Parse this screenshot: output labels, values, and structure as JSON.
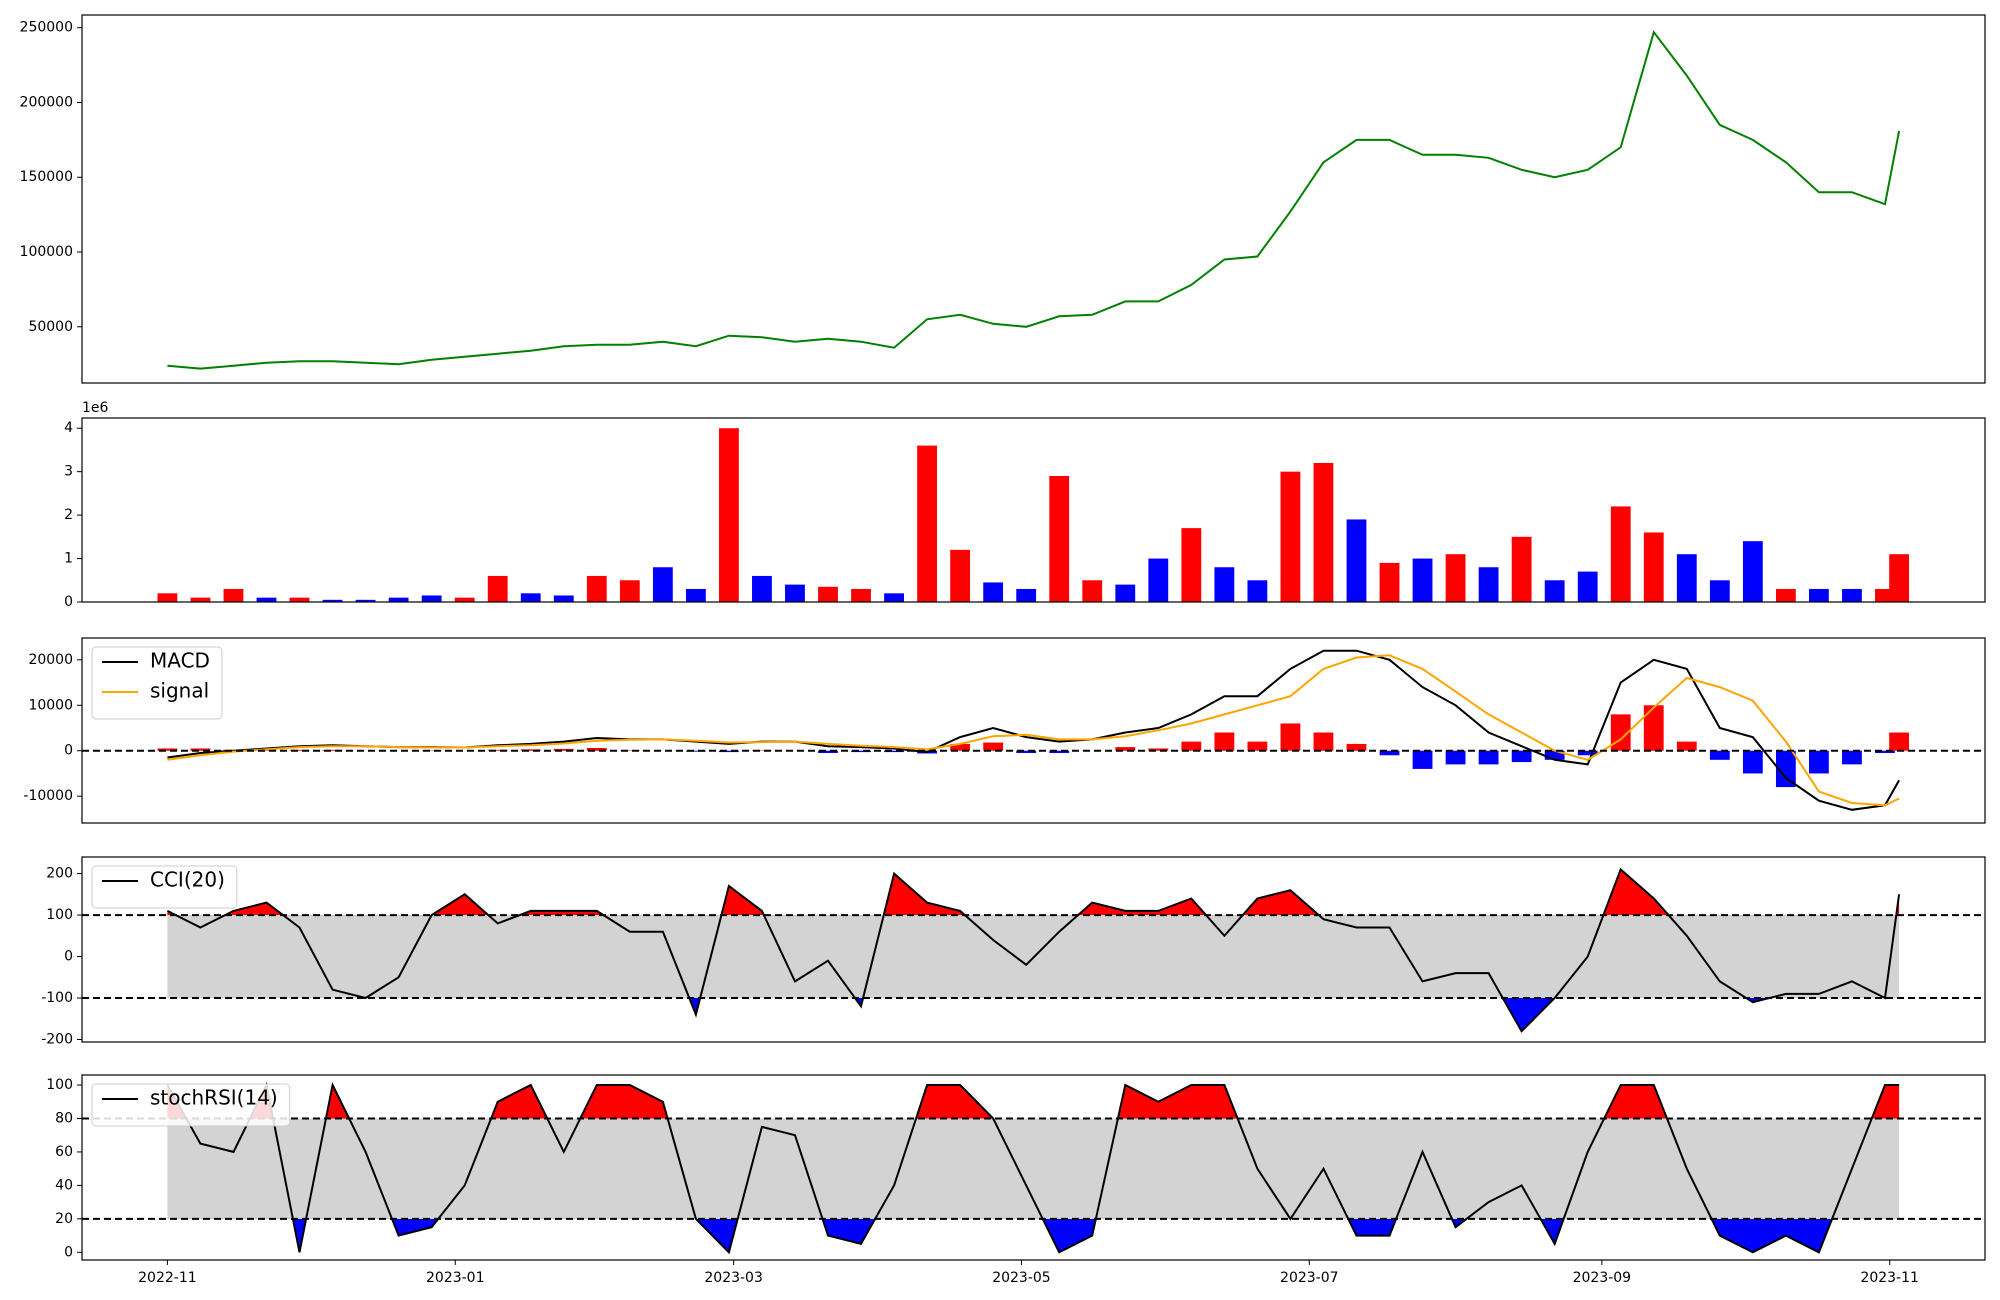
{
  "chart_data": [
    {
      "type": "line",
      "xlim": [
        -18.1,
        385.2
      ],
      "ylim": [
        12400,
        258500
      ],
      "yticks": [
        50000,
        100000,
        150000,
        200000,
        250000
      ],
      "x": [
        0,
        7,
        14,
        21,
        28,
        35,
        42,
        49,
        56,
        63,
        70,
        77,
        84,
        91,
        98,
        105,
        112,
        119,
        126,
        133,
        140,
        147,
        154,
        161,
        168,
        175,
        182,
        189,
        196,
        203,
        210,
        217,
        224,
        231,
        238,
        245,
        252,
        259,
        266,
        273,
        280,
        287,
        294,
        301,
        308,
        315,
        322,
        329,
        336,
        343,
        350,
        357,
        364,
        367
      ],
      "series": [
        {
          "color": "#008000",
          "values": [
            24000,
            22000,
            24000,
            26000,
            27000,
            27000,
            26000,
            25000,
            28000,
            30000,
            32000,
            34000,
            37000,
            38000,
            38000,
            40000,
            37000,
            44000,
            43000,
            40000,
            42000,
            40000,
            36000,
            55000,
            58000,
            52000,
            50000,
            57000,
            58000,
            67000,
            67000,
            78000,
            95000,
            97000,
            127000,
            160000,
            175000,
            175000,
            165000,
            165000,
            163000,
            155000,
            150000,
            155000,
            170000,
            247000,
            218000,
            185000,
            175000,
            160000,
            140000,
            140000,
            132000,
            181000
          ]
        }
      ]
    },
    {
      "type": "bar",
      "xlim": [
        -18.1,
        385.2
      ],
      "ylim": [
        0,
        4.235
      ],
      "yticks": [
        0,
        1,
        2,
        3,
        4
      ],
      "offset_label": "1e6",
      "x": [
        0,
        7,
        14,
        21,
        28,
        35,
        42,
        49,
        56,
        63,
        70,
        77,
        84,
        91,
        98,
        105,
        112,
        119,
        126,
        133,
        140,
        147,
        154,
        161,
        168,
        175,
        182,
        189,
        196,
        203,
        210,
        217,
        224,
        231,
        238,
        245,
        252,
        259,
        266,
        273,
        280,
        287,
        294,
        301,
        308,
        315,
        322,
        329,
        336,
        343,
        350,
        357,
        364,
        367
      ],
      "values": [
        0.2,
        0.1,
        0.3,
        0.1,
        0.1,
        0.05,
        0.05,
        0.1,
        0.15,
        0.1,
        0.6,
        0.2,
        0.15,
        0.6,
        0.5,
        0.8,
        0.3,
        4.0,
        0.6,
        0.4,
        0.35,
        0.3,
        0.2,
        3.6,
        1.2,
        0.45,
        0.3,
        2.9,
        0.5,
        0.4,
        1.0,
        1.7,
        0.8,
        0.5,
        3.0,
        3.2,
        1.9,
        0.9,
        1.0,
        1.1,
        0.8,
        1.5,
        0.5,
        0.7,
        2.2,
        1.6,
        1.1,
        0.5,
        1.4,
        0.3,
        0.3,
        0.3,
        0.3,
        1.1
      ],
      "colors": [
        "red",
        "red",
        "red",
        "blue",
        "red",
        "blue",
        "blue",
        "blue",
        "blue",
        "red",
        "red",
        "blue",
        "blue",
        "red",
        "red",
        "blue",
        "blue",
        "red",
        "blue",
        "blue",
        "red",
        "red",
        "blue",
        "red",
        "red",
        "blue",
        "blue",
        "red",
        "red",
        "blue",
        "blue",
        "red",
        "blue",
        "blue",
        "red",
        "red",
        "blue",
        "red",
        "blue",
        "red",
        "blue",
        "red",
        "blue",
        "blue",
        "red",
        "red",
        "blue",
        "blue",
        "blue",
        "red",
        "blue",
        "blue",
        "red",
        "red"
      ]
    },
    {
      "type": "line",
      "xlim": [
        -18.1,
        385.2
      ],
      "ylim": [
        -15900,
        24800
      ],
      "yticks": [
        -10000,
        0,
        10000,
        20000
      ],
      "hlines": [
        0
      ],
      "legend": "upper left",
      "x": [
        0,
        7,
        14,
        21,
        28,
        35,
        42,
        49,
        56,
        63,
        70,
        77,
        84,
        91,
        98,
        105,
        112,
        119,
        126,
        133,
        140,
        147,
        154,
        161,
        168,
        175,
        182,
        189,
        196,
        203,
        210,
        217,
        224,
        231,
        238,
        245,
        252,
        259,
        266,
        273,
        280,
        287,
        294,
        301,
        308,
        315,
        322,
        329,
        336,
        343,
        350,
        357,
        364,
        367
      ],
      "series": [
        {
          "name": "MACD",
          "color": "black",
          "values": [
            -1500,
            -500,
            0,
            500,
            1000,
            1200,
            1000,
            800,
            800,
            700,
            1200,
            1500,
            2000,
            2800,
            2500,
            2500,
            2000,
            1500,
            2000,
            2000,
            1000,
            800,
            500,
            -300,
            3000,
            5000,
            3000,
            2000,
            2500,
            4000,
            5000,
            8000,
            12000,
            12000,
            18000,
            22000,
            22000,
            20000,
            14000,
            10000,
            4000,
            1000,
            -2000,
            -3000,
            15000,
            20000,
            18000,
            5000,
            3000,
            -6000,
            -11000,
            -13000,
            -12000,
            -6500
          ]
        },
        {
          "name": "signal",
          "color": "orange",
          "values": [
            -2000,
            -1000,
            -200,
            300,
            800,
            1000,
            1000,
            800,
            700,
            700,
            1000,
            1200,
            1600,
            2200,
            2400,
            2500,
            2200,
            1800,
            1900,
            2000,
            1500,
            1100,
            800,
            300,
            1500,
            3200,
            3500,
            2500,
            2500,
            3200,
            4500,
            6000,
            8000,
            10000,
            12000,
            18000,
            20500,
            21000,
            18000,
            13000,
            8000,
            4000,
            0,
            -2000,
            2500,
            9500,
            16000,
            14000,
            11000,
            2000,
            -9000,
            -11500,
            -12000,
            -10500
          ]
        }
      ],
      "histogram": {
        "pos_color": "red",
        "neg_color": "blue",
        "values": [
          500,
          500,
          200,
          200,
          200,
          200,
          0,
          0,
          100,
          0,
          200,
          300,
          400,
          600,
          100,
          0,
          -200,
          -300,
          100,
          0,
          -500,
          -300,
          -300,
          -600,
          1500,
          1800,
          -500,
          -500,
          0,
          800,
          500,
          2000,
          4000,
          2000,
          6000,
          4000,
          1500,
          -1000,
          -4000,
          -3000,
          -3000,
          -2500,
          -2000,
          -1000,
          8000,
          10000,
          2000,
          -2000,
          -5000,
          -8000,
          -5000,
          -3000,
          -500,
          4000
        ]
      }
    },
    {
      "type": "band",
      "xlim": [
        -18.1,
        385.2
      ],
      "ylim": [
        -206,
        240
      ],
      "yticks": [
        -200,
        -100,
        0,
        100,
        200
      ],
      "hlines": [
        -100,
        100
      ],
      "legend": "upper left",
      "band_color": "lightgray",
      "upper_color": "red",
      "lower_color": "blue",
      "x": [
        0,
        7,
        14,
        21,
        28,
        35,
        42,
        49,
        56,
        63,
        70,
        77,
        84,
        91,
        98,
        105,
        112,
        119,
        126,
        133,
        140,
        147,
        154,
        161,
        168,
        175,
        182,
        189,
        196,
        203,
        210,
        217,
        224,
        231,
        238,
        245,
        252,
        259,
        266,
        273,
        280,
        287,
        294,
        301,
        308,
        315,
        322,
        329,
        336,
        343,
        350,
        357,
        364,
        367
      ],
      "series": [
        {
          "name": "CCI(20)",
          "color": "black",
          "values": [
            110,
            70,
            110,
            130,
            70,
            -80,
            -100,
            -50,
            100,
            150,
            80,
            110,
            110,
            110,
            60,
            60,
            -140,
            170,
            110,
            -60,
            -10,
            -120,
            200,
            130,
            110,
            40,
            -20,
            60,
            130,
            110,
            110,
            140,
            50,
            140,
            160,
            90,
            70,
            70,
            -60,
            -40,
            -40,
            -180,
            -100,
            0,
            210,
            140,
            50,
            -60,
            -110,
            -90,
            -90,
            -60,
            -100,
            150
          ]
        }
      ]
    },
    {
      "type": "band",
      "xlim": [
        -18.1,
        385.2
      ],
      "ylim": [
        -4.6,
        106
      ],
      "yticks": [
        0,
        20,
        40,
        60,
        80,
        100
      ],
      "hlines": [
        20,
        80
      ],
      "legend": "upper left",
      "band_color": "lightgray",
      "upper_color": "red",
      "lower_color": "blue",
      "x": [
        0,
        7,
        14,
        21,
        28,
        35,
        42,
        49,
        56,
        63,
        70,
        77,
        84,
        91,
        98,
        105,
        112,
        119,
        126,
        133,
        140,
        147,
        154,
        161,
        168,
        175,
        182,
        189,
        196,
        203,
        210,
        217,
        224,
        231,
        238,
        245,
        252,
        259,
        266,
        273,
        280,
        287,
        294,
        301,
        308,
        315,
        322,
        329,
        336,
        343,
        350,
        357,
        364,
        367
      ],
      "xticks": [
        {
          "value": 0,
          "label": "2022-11"
        },
        {
          "value": 61,
          "label": "2023-01"
        },
        {
          "value": 120,
          "label": "2023-03"
        },
        {
          "value": 181,
          "label": "2023-05"
        },
        {
          "value": 242,
          "label": "2023-07"
        },
        {
          "value": 304,
          "label": "2023-09"
        },
        {
          "value": 365,
          "label": "2023-11"
        }
      ],
      "series": [
        {
          "name": "stochRSI(14)",
          "color": "black",
          "values": [
            100,
            65,
            60,
            100,
            0,
            100,
            60,
            10,
            15,
            40,
            90,
            100,
            60,
            100,
            100,
            90,
            20,
            0,
            75,
            70,
            10,
            5,
            40,
            100,
            100,
            80,
            40,
            0,
            10,
            100,
            90,
            100,
            100,
            50,
            20,
            50,
            10,
            10,
            60,
            15,
            30,
            40,
            5,
            60,
            100,
            100,
            50,
            10,
            0,
            10,
            0,
            50,
            100,
            100
          ]
        }
      ]
    }
  ]
}
